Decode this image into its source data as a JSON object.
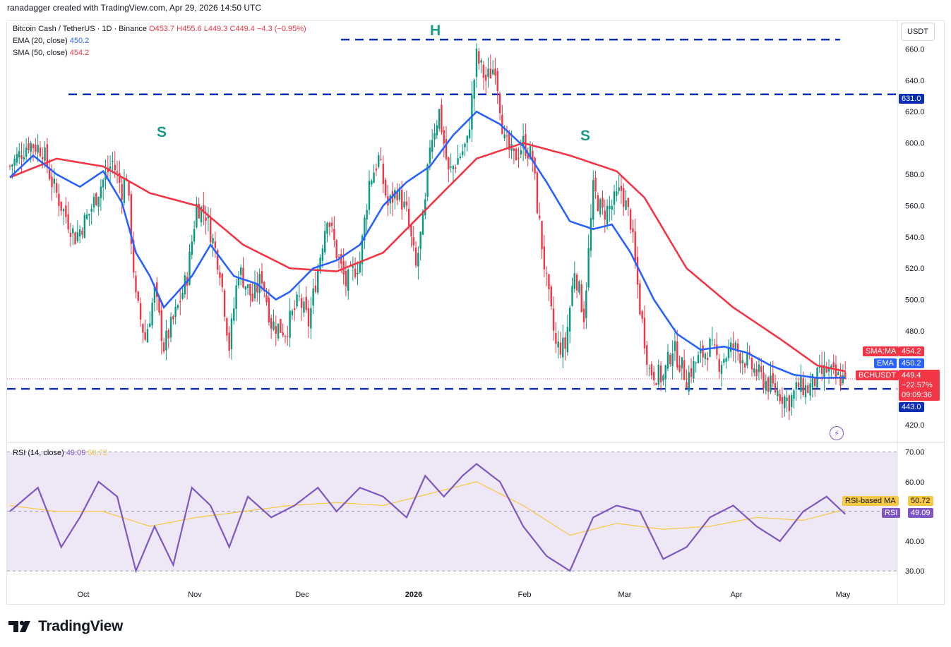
{
  "header": {
    "text": "ranadagger created with TradingView.com, Apr 29, 2026 14:50 UTC"
  },
  "legend": {
    "symbol": "Bitcoin Cash / TetherUS · 1D · Binance",
    "open": "O453.7",
    "high": "H455.6",
    "low": "L449.3",
    "close": "C449.4",
    "change": "−4.3 (−0.95%)",
    "ema_label": "EMA (20, close)",
    "ema_value": "450.2",
    "sma_label": "SMA (50, close)",
    "sma_value": "454.2",
    "rsi_label": "RSI (14, close)",
    "rsi_value": "49.09",
    "rsi_ma_value": "50.72"
  },
  "annotations": {
    "head": "H",
    "shoulder_left": "S",
    "shoulder_right": "S"
  },
  "price_axis": {
    "currency": "USDT",
    "ticks": [
      "660.0",
      "640.0",
      "620.0",
      "600.0",
      "580.0",
      "560.0",
      "540.0",
      "520.0",
      "500.0",
      "480.0",
      "420.0"
    ],
    "tick_values": [
      660,
      640,
      620,
      600,
      580,
      560,
      540,
      520,
      500,
      480,
      420
    ],
    "range": [
      412,
      671
    ]
  },
  "rsi_axis": {
    "ticks": [
      "70.00",
      "60.00",
      "40.00",
      "30.00"
    ],
    "tick_values": [
      70,
      60,
      40,
      30
    ],
    "range": [
      26,
      73
    ]
  },
  "time_axis": {
    "labels": [
      "Oct",
      "Nov",
      "Dec",
      "2026",
      "Feb",
      "Mar",
      "Apr",
      "May"
    ]
  },
  "tags": {
    "level_631": "631.0",
    "level_443": "443.0",
    "sma_tag": "SMA:MA",
    "sma_val": "454.2",
    "ema_tag": "EMA",
    "ema_val": "450.2",
    "pair_tag": "BCHUSDT",
    "price": "449.4",
    "pct": "−22.57%",
    "countdown": "09:09:36",
    "rsi_ma_tag": "RSI-based MA",
    "rsi_ma_val": "50.72",
    "rsi_tag": "RSI",
    "rsi_val": "49.09"
  },
  "logo": {
    "text": "TradingView"
  },
  "colors": {
    "up": "#089981",
    "down": "#f23645",
    "ema": "#2962ff",
    "sma": "#f23645",
    "rsi": "#7e57c2",
    "rsi_ma": "#f7c843",
    "level": "#0a2fb5",
    "rsi_band": "#ede7f6"
  },
  "chart_data": [
    {
      "type": "candlestick",
      "title": "Bitcoin Cash / TetherUS · 1D · Binance",
      "ylabel": "USDT",
      "ylim": [
        412,
        671
      ],
      "x_labels": [
        "Oct",
        "Nov",
        "Dec",
        "2026",
        "Feb",
        "Mar",
        "Apr",
        "May"
      ],
      "horizontal_levels": [
        666,
        631,
        443
      ],
      "close_path": [
        [
          0,
          585
        ],
        [
          8,
          600
        ],
        [
          14,
          596
        ],
        [
          18,
          575
        ],
        [
          22,
          560
        ],
        [
          28,
          540
        ],
        [
          34,
          555
        ],
        [
          38,
          570
        ],
        [
          44,
          588
        ],
        [
          48,
          570
        ],
        [
          50,
          580
        ],
        [
          54,
          500
        ],
        [
          58,
          475
        ],
        [
          62,
          505
        ],
        [
          66,
          470
        ],
        [
          72,
          495
        ],
        [
          76,
          515
        ],
        [
          80,
          560
        ],
        [
          84,
          555
        ],
        [
          90,
          520
        ],
        [
          94,
          470
        ],
        [
          98,
          520
        ],
        [
          104,
          500
        ],
        [
          108,
          515
        ],
        [
          112,
          485
        ],
        [
          118,
          480
        ],
        [
          124,
          500
        ],
        [
          128,
          485
        ],
        [
          132,
          520
        ],
        [
          136,
          555
        ],
        [
          140,
          530
        ],
        [
          144,
          510
        ],
        [
          150,
          525
        ],
        [
          154,
          575
        ],
        [
          158,
          590
        ],
        [
          162,
          560
        ],
        [
          166,
          570
        ],
        [
          170,
          555
        ],
        [
          174,
          520
        ],
        [
          178,
          560
        ],
        [
          180,
          600
        ],
        [
          184,
          620
        ],
        [
          188,
          580
        ],
        [
          192,
          590
        ],
        [
          196,
          600
        ],
        [
          200,
          655
        ],
        [
          204,
          640
        ],
        [
          208,
          650
        ],
        [
          212,
          600
        ],
        [
          216,
          590
        ],
        [
          220,
          600
        ],
        [
          224,
          590
        ],
        [
          226,
          560
        ],
        [
          230,
          510
        ],
        [
          234,
          470
        ],
        [
          238,
          470
        ],
        [
          242,
          520
        ],
        [
          246,
          490
        ],
        [
          250,
          570
        ],
        [
          254,
          555
        ],
        [
          258,
          560
        ],
        [
          262,
          570
        ],
        [
          266,
          550
        ],
        [
          270,
          495
        ],
        [
          274,
          455
        ],
        [
          280,
          450
        ],
        [
          284,
          470
        ],
        [
          290,
          450
        ],
        [
          294,
          460
        ],
        [
          300,
          470
        ],
        [
          304,
          460
        ],
        [
          310,
          470
        ],
        [
          316,
          460
        ],
        [
          322,
          450
        ],
        [
          326,
          445
        ],
        [
          330,
          440
        ],
        [
          334,
          435
        ],
        [
          338,
          445
        ],
        [
          342,
          443
        ],
        [
          346,
          450
        ],
        [
          350,
          455
        ],
        [
          354,
          450
        ],
        [
          358,
          449.4
        ]
      ],
      "close_path_x_unit": "trading days from first visible bar",
      "series": [
        {
          "name": "EMA (20, close)",
          "last": 450.2
        },
        {
          "name": "SMA (50, close)",
          "last": 454.2
        }
      ],
      "ema20_path": [
        [
          0,
          578
        ],
        [
          10,
          592
        ],
        [
          20,
          580
        ],
        [
          30,
          572
        ],
        [
          40,
          582
        ],
        [
          48,
          562
        ],
        [
          54,
          530
        ],
        [
          60,
          515
        ],
        [
          66,
          495
        ],
        [
          72,
          505
        ],
        [
          78,
          515
        ],
        [
          86,
          535
        ],
        [
          96,
          515
        ],
        [
          106,
          510
        ],
        [
          114,
          500
        ],
        [
          120,
          505
        ],
        [
          130,
          520
        ],
        [
          140,
          525
        ],
        [
          150,
          535
        ],
        [
          160,
          560
        ],
        [
          170,
          575
        ],
        [
          180,
          585
        ],
        [
          190,
          605
        ],
        [
          200,
          620
        ],
        [
          210,
          612
        ],
        [
          220,
          598
        ],
        [
          230,
          575
        ],
        [
          240,
          550
        ],
        [
          250,
          545
        ],
        [
          258,
          548
        ],
        [
          266,
          530
        ],
        [
          276,
          500
        ],
        [
          286,
          478
        ],
        [
          296,
          468
        ],
        [
          306,
          470
        ],
        [
          316,
          466
        ],
        [
          326,
          458
        ],
        [
          336,
          452
        ],
        [
          346,
          450
        ],
        [
          358,
          450.2
        ]
      ],
      "sma50_path": [
        [
          0,
          578
        ],
        [
          20,
          590
        ],
        [
          40,
          585
        ],
        [
          60,
          568
        ],
        [
          80,
          560
        ],
        [
          100,
          535
        ],
        [
          120,
          520
        ],
        [
          140,
          518
        ],
        [
          160,
          530
        ],
        [
          180,
          560
        ],
        [
          200,
          590
        ],
        [
          220,
          600
        ],
        [
          240,
          592
        ],
        [
          260,
          582
        ],
        [
          272,
          565
        ],
        [
          290,
          520
        ],
        [
          310,
          495
        ],
        [
          330,
          475
        ],
        [
          346,
          458
        ],
        [
          358,
          454.2
        ]
      ]
    },
    {
      "type": "line",
      "title": "RSI (14, close)",
      "ylim": [
        26,
        73
      ],
      "reference_lines": [
        70,
        50,
        30
      ],
      "series": [
        {
          "name": "RSI",
          "values_path": [
            [
              0,
              50
            ],
            [
              12,
              58
            ],
            [
              22,
              38
            ],
            [
              30,
              48
            ],
            [
              38,
              60
            ],
            [
              46,
              55
            ],
            [
              54,
              30
            ],
            [
              62,
              45
            ],
            [
              70,
              32
            ],
            [
              78,
              58
            ],
            [
              86,
              52
            ],
            [
              94,
              38
            ],
            [
              102,
              55
            ],
            [
              112,
              48
            ],
            [
              122,
              52
            ],
            [
              132,
              58
            ],
            [
              140,
              50
            ],
            [
              150,
              58
            ],
            [
              160,
              55
            ],
            [
              170,
              48
            ],
            [
              178,
              62
            ],
            [
              186,
              55
            ],
            [
              194,
              62
            ],
            [
              200,
              66
            ],
            [
              210,
              60
            ],
            [
              220,
              45
            ],
            [
              230,
              35
            ],
            [
              240,
              30
            ],
            [
              250,
              48
            ],
            [
              260,
              52
            ],
            [
              270,
              50
            ],
            [
              280,
              34
            ],
            [
              290,
              38
            ],
            [
              300,
              48
            ],
            [
              310,
              52
            ],
            [
              320,
              45
            ],
            [
              330,
              40
            ],
            [
              340,
              50
            ],
            [
              350,
              55
            ],
            [
              358,
              49.09
            ]
          ],
          "last": 49.09
        },
        {
          "name": "RSI-based MA",
          "values_path": [
            [
              0,
              52
            ],
            [
              20,
              50
            ],
            [
              40,
              50
            ],
            [
              60,
              45
            ],
            [
              80,
              48
            ],
            [
              100,
              50
            ],
            [
              120,
              52
            ],
            [
              140,
              53
            ],
            [
              160,
              52
            ],
            [
              180,
              56
            ],
            [
              200,
              60
            ],
            [
              220,
              52
            ],
            [
              240,
              42
            ],
            [
              260,
              46
            ],
            [
              280,
              44
            ],
            [
              300,
              45
            ],
            [
              320,
              48
            ],
            [
              340,
              47
            ],
            [
              358,
              50.72
            ]
          ],
          "last": 50.72
        }
      ]
    }
  ]
}
